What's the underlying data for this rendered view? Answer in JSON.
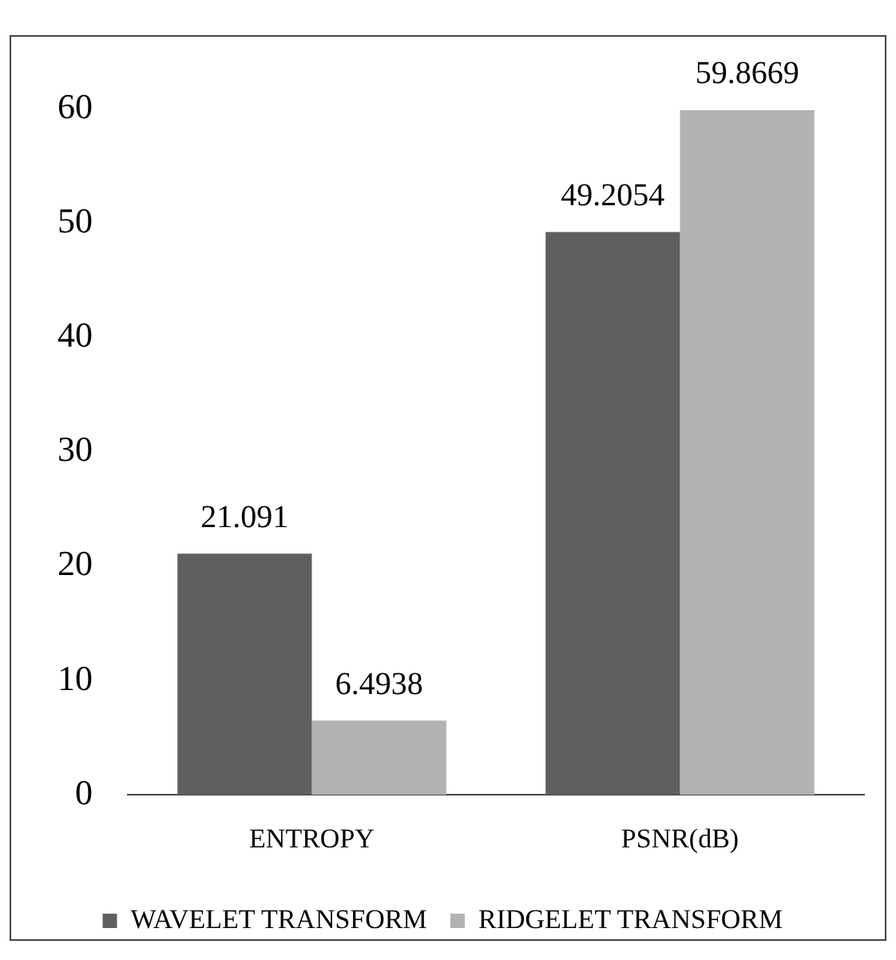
{
  "chart_data": {
    "type": "bar",
    "categories": [
      "ENTROPY",
      "PSNR(dB)"
    ],
    "series": [
      {
        "name": "WAVELET TRANSFORM",
        "color": "#5f5f5f",
        "values": [
          21.091,
          49.2054
        ]
      },
      {
        "name": "RIDGELET TRANSFORM",
        "color": "#b2b2b2",
        "values": [
          6.4938,
          59.8669
        ]
      }
    ],
    "ylim": [
      0,
      60
    ],
    "yticks": [
      0,
      10,
      20,
      30,
      40,
      50,
      60
    ],
    "grid": false,
    "legend": "bottom",
    "data_labels": true
  }
}
